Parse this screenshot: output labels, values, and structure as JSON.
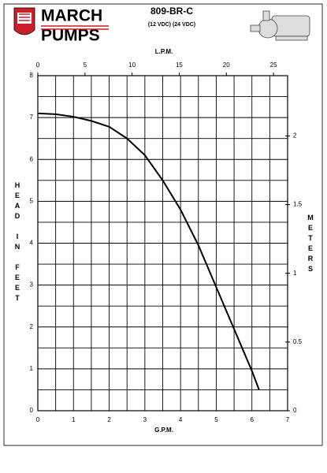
{
  "chart_data": {
    "type": "line",
    "brand_top": "MARCH",
    "brand_bottom": "PUMPS",
    "title": "809-BR-C",
    "subtitle": "(12 VDC) (24 VDC)",
    "x_label": "G.P.M.",
    "x2_label": "L.P.M.",
    "y_label": "HEAD IN FEET",
    "y2_label": "METERS",
    "x": [
      0,
      0.5,
      1,
      1.5,
      2,
      2.5,
      3,
      3.5,
      4,
      4.5,
      5,
      5.5,
      6,
      6.2
    ],
    "values": [
      7.1,
      7.08,
      7.02,
      6.92,
      6.78,
      6.5,
      6.1,
      5.5,
      4.8,
      3.95,
      2.95,
      1.95,
      0.95,
      0.5
    ],
    "color": "#000000",
    "xlim": [
      0,
      7
    ],
    "xticks": [
      0,
      1,
      2,
      3,
      4,
      5,
      6,
      7
    ],
    "ylim": [
      0,
      8
    ],
    "yticks": [
      0,
      1,
      2,
      3,
      4,
      5,
      6,
      7,
      8
    ],
    "x2lim": [
      0,
      26.498
    ],
    "x2ticks": [
      0,
      5,
      10,
      15,
      20,
      25
    ],
    "y2lim": [
      0,
      2.4384
    ],
    "y2ticks": [
      0,
      0.5,
      1,
      1.5,
      2
    ],
    "grid": true
  }
}
